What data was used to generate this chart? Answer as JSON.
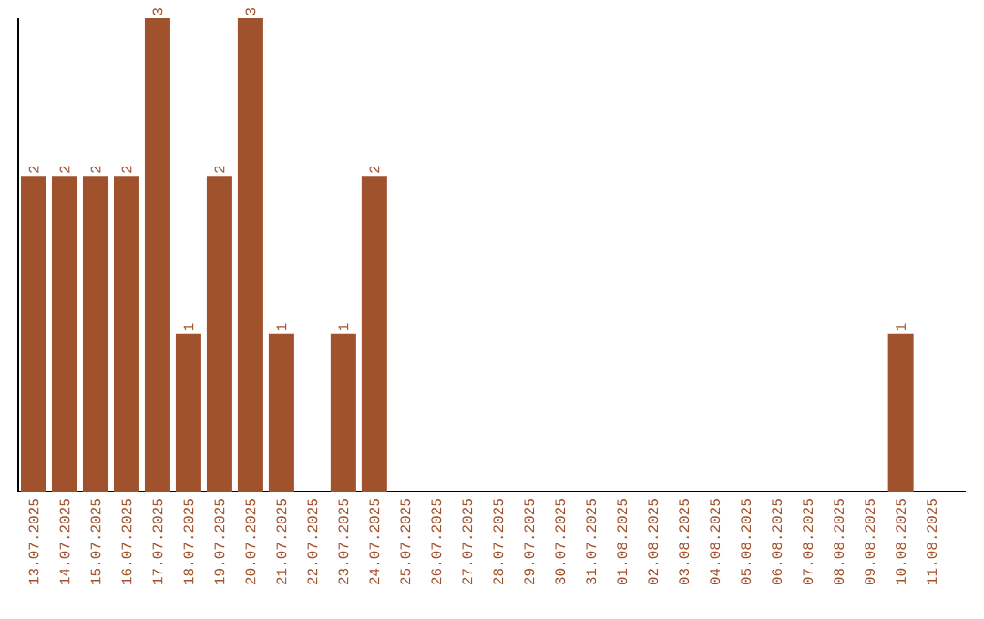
{
  "chart_data": {
    "type": "bar",
    "categories": [
      "13.07.2025",
      "14.07.2025",
      "15.07.2025",
      "16.07.2025",
      "17.07.2025",
      "18.07.2025",
      "19.07.2025",
      "20.07.2025",
      "21.07.2025",
      "22.07.2025",
      "23.07.2025",
      "24.07.2025",
      "25.07.2025",
      "26.07.2025",
      "27.07.2025",
      "28.07.2025",
      "29.07.2025",
      "30.07.2025",
      "31.07.2025",
      "01.08.2025",
      "02.08.2025",
      "03.08.2025",
      "04.08.2025",
      "05.08.2025",
      "06.08.2025",
      "07.08.2025",
      "08.08.2025",
      "09.08.2025",
      "10.08.2025",
      "11.08.2025"
    ],
    "values": [
      2,
      2,
      2,
      2,
      3,
      1,
      2,
      3,
      1,
      0,
      1,
      2,
      0,
      0,
      0,
      0,
      0,
      0,
      0,
      0,
      0,
      0,
      0,
      0,
      0,
      0,
      0,
      0,
      1,
      0
    ],
    "value_labels": [
      "2",
      "2",
      "2",
      "2",
      "3",
      "1",
      "2",
      "3",
      "1",
      null,
      "1",
      "2",
      null,
      null,
      null,
      null,
      null,
      null,
      null,
      null,
      null,
      null,
      null,
      null,
      null,
      null,
      null,
      null,
      "1",
      null
    ],
    "color": "#a0522d"
  }
}
